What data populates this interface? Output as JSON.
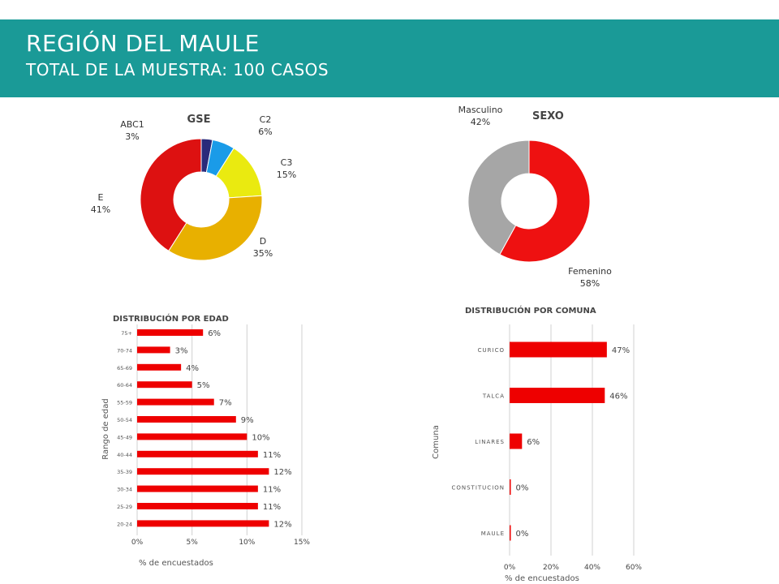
{
  "header": {
    "title": "REGIÓN DEL MAULE",
    "subtitle": "TOTAL DE LA MUESTRA: 100 CASOS"
  },
  "colors": {
    "header_bg": "#1a9a97",
    "bar": "#ee0000",
    "gse_abc1": "#2a2a7a",
    "gse_c2": "#1a9be8",
    "gse_c3": "#eaea10",
    "gse_d": "#e8b000",
    "gse_e": "#dd1111",
    "sexo_femenino": "#ee1111",
    "sexo_masculino": "#a6a6a6"
  },
  "chart_data": [
    {
      "type": "pie",
      "title": "GSE",
      "categories": [
        "ABC1",
        "C2",
        "C3",
        "D",
        "E"
      ],
      "values": [
        3,
        6,
        15,
        35,
        41
      ],
      "value_labels": [
        "3%",
        "6%",
        "15%",
        "35%",
        "41%"
      ]
    },
    {
      "type": "pie",
      "title": "SEXO",
      "categories": [
        "Femenino",
        "Masculino"
      ],
      "values": [
        58,
        42
      ],
      "value_labels": [
        "58%",
        "42%"
      ]
    },
    {
      "type": "bar",
      "orientation": "horizontal",
      "title": "DISTRIBUCIÓN POR EDAD",
      "xlabel": "% de encuestados",
      "ylabel": "Rango de edad",
      "categories": [
        "75+",
        "70-74",
        "65-69",
        "60-64",
        "55-59",
        "50-54",
        "45-49",
        "40-44",
        "35-39",
        "30-34",
        "25-29",
        "20-24"
      ],
      "values": [
        6,
        3,
        4,
        5,
        7,
        9,
        10,
        11,
        12,
        11,
        11,
        12
      ],
      "value_labels": [
        "6%",
        "3%",
        "4%",
        "5%",
        "7%",
        "9%",
        "10%",
        "11%",
        "12%",
        "11%",
        "11%",
        "12%"
      ],
      "xlim": [
        0,
        15
      ],
      "xticks": [
        "0%",
        "5%",
        "10%",
        "15%"
      ],
      "grid": true
    },
    {
      "type": "bar",
      "orientation": "horizontal",
      "title": "DISTRIBUCIÓN POR COMUNA",
      "xlabel": "% de encuestados",
      "ylabel": "Comuna",
      "categories": [
        "CURICO",
        "TALCA",
        "LINARES",
        "CONSTITUCION",
        "MAULE"
      ],
      "values": [
        47,
        46,
        6,
        0,
        0
      ],
      "value_labels": [
        "47%",
        "46%",
        "6%",
        "0%",
        "0%"
      ],
      "xlim": [
        0,
        60
      ],
      "xticks": [
        "0%",
        "20%",
        "40%",
        "60%"
      ],
      "grid": true
    }
  ]
}
